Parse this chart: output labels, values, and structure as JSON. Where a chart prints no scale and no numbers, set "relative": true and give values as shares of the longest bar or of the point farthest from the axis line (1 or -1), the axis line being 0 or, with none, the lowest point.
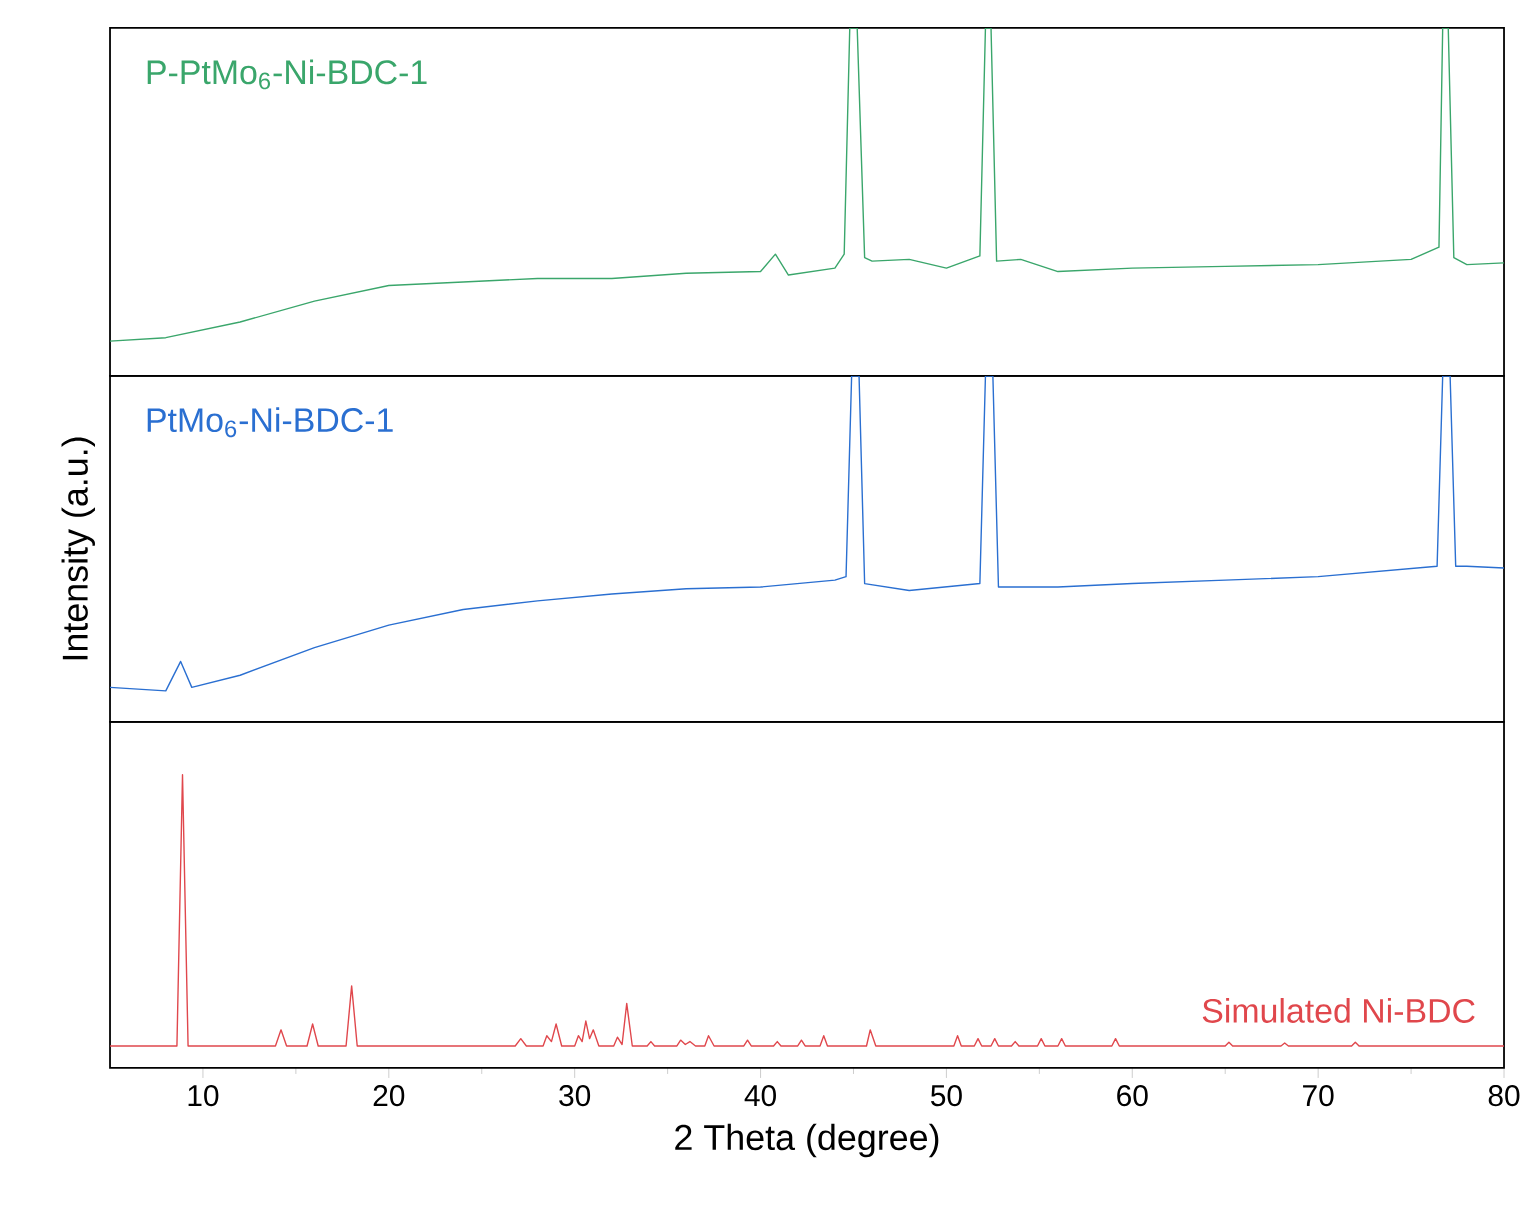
{
  "chart_data": [
    {
      "type": "line",
      "relative": true,
      "xlim": [
        5,
        80
      ],
      "tick_labels": false,
      "series": [
        {
          "name": "P-PtMo$_{6}$-Ni-BDC-1",
          "color": "#3aa66b",
          "x": [
            5,
            8,
            12,
            16,
            20,
            24,
            28,
            32,
            36,
            40,
            40.8,
            41.5,
            44,
            44.5,
            44.8,
            45.2,
            45.6,
            46,
            48,
            50,
            51.8,
            52.1,
            52.4,
            52.7,
            54,
            56,
            60,
            65,
            70,
            75,
            76.5,
            76.7,
            77,
            77.3,
            78,
            80
          ],
          "values": [
            0.1,
            0.11,
            0.155,
            0.215,
            0.26,
            0.27,
            0.28,
            0.28,
            0.295,
            0.3,
            0.35,
            0.29,
            0.31,
            0.35,
            1,
            1,
            0.34,
            0.33,
            0.335,
            0.31,
            0.345,
            1,
            1,
            0.33,
            0.335,
            0.3,
            0.31,
            0.315,
            0.32,
            0.335,
            0.37,
            1,
            1,
            0.34,
            0.32,
            0.325
          ]
        }
      ]
    },
    {
      "type": "line",
      "relative": true,
      "xlim": [
        5,
        80
      ],
      "tick_labels": false,
      "ylabel": "Intensity (a.u.)",
      "series": [
        {
          "name": "PtMo$_{6}$-Ni-BDC-1",
          "color": "#2a6fd1",
          "x": [
            5,
            8,
            8.8,
            9.4,
            12,
            16,
            20,
            24,
            28,
            32,
            36,
            40,
            44,
            44.6,
            44.9,
            45.3,
            45.6,
            48,
            51.8,
            52.1,
            52.5,
            52.8,
            56,
            60,
            65,
            70,
            76.4,
            76.7,
            77.1,
            77.4,
            78,
            80
          ],
          "values": [
            0.1,
            0.09,
            0.175,
            0.1,
            0.135,
            0.215,
            0.28,
            0.325,
            0.35,
            0.37,
            0.385,
            0.39,
            0.41,
            0.42,
            1,
            1,
            0.4,
            0.38,
            0.4,
            1,
            1,
            0.39,
            0.39,
            0.4,
            0.41,
            0.42,
            0.45,
            1,
            1,
            0.45,
            0.45,
            0.445
          ]
        }
      ]
    },
    {
      "type": "line",
      "relative": true,
      "xlim": [
        5,
        80
      ],
      "xticks": [
        10,
        20,
        30,
        40,
        50,
        60,
        70,
        80
      ],
      "tick_labels": "x",
      "xlabel": "2 Theta (degree)",
      "series": [
        {
          "name": "Simulated Ni-BDC",
          "color": "#e0474c",
          "x": [
            5,
            8.6,
            8.9,
            9.2,
            13.9,
            14.2,
            14.5,
            15.6,
            15.9,
            16.2,
            17.7,
            18.0,
            18.3,
            26.8,
            27.1,
            27.4,
            28.3,
            28.5,
            28.75,
            29.0,
            29.3,
            30.0,
            30.2,
            30.4,
            30.6,
            30.8,
            31.0,
            31.3,
            32.1,
            32.3,
            32.55,
            32.8,
            33.1,
            33.9,
            34.1,
            34.3,
            35.5,
            35.7,
            35.95,
            36.2,
            36.5,
            37.0,
            37.2,
            37.5,
            39.1,
            39.3,
            39.5,
            40.7,
            40.9,
            41.1,
            42.0,
            42.2,
            42.4,
            43.2,
            43.4,
            43.6,
            45.7,
            45.9,
            46.2,
            50.4,
            50.6,
            50.8,
            51.5,
            51.7,
            51.9,
            52.4,
            52.6,
            52.8,
            53.5,
            53.7,
            53.9,
            54.9,
            55.1,
            55.3,
            56.0,
            56.2,
            56.4,
            58.9,
            59.1,
            59.3,
            65.0,
            65.2,
            65.4,
            68.0,
            68.2,
            68.4,
            71.8,
            72.0,
            72.2,
            80
          ],
          "values": [
            0.075,
            0.075,
            1,
            0.075,
            0.075,
            0.13,
            0.075,
            0.075,
            0.15,
            0.075,
            0.075,
            0.28,
            0.075,
            0.075,
            0.1,
            0.075,
            0.075,
            0.11,
            0.09,
            0.15,
            0.075,
            0.075,
            0.11,
            0.09,
            0.16,
            0.1,
            0.13,
            0.075,
            0.075,
            0.105,
            0.08,
            0.22,
            0.075,
            0.075,
            0.09,
            0.075,
            0.075,
            0.095,
            0.08,
            0.09,
            0.075,
            0.075,
            0.11,
            0.075,
            0.075,
            0.095,
            0.075,
            0.075,
            0.09,
            0.075,
            0.075,
            0.095,
            0.075,
            0.075,
            0.11,
            0.075,
            0.075,
            0.13,
            0.075,
            0.075,
            0.11,
            0.075,
            0.075,
            0.1,
            0.075,
            0.075,
            0.1,
            0.075,
            0.075,
            0.09,
            0.075,
            0.075,
            0.1,
            0.075,
            0.075,
            0.1,
            0.075,
            0.075,
            0.1,
            0.075,
            0.075,
            0.088,
            0.075,
            0.075,
            0.085,
            0.075,
            0.075,
            0.088,
            0.075,
            0.075
          ]
        }
      ]
    }
  ]
}
